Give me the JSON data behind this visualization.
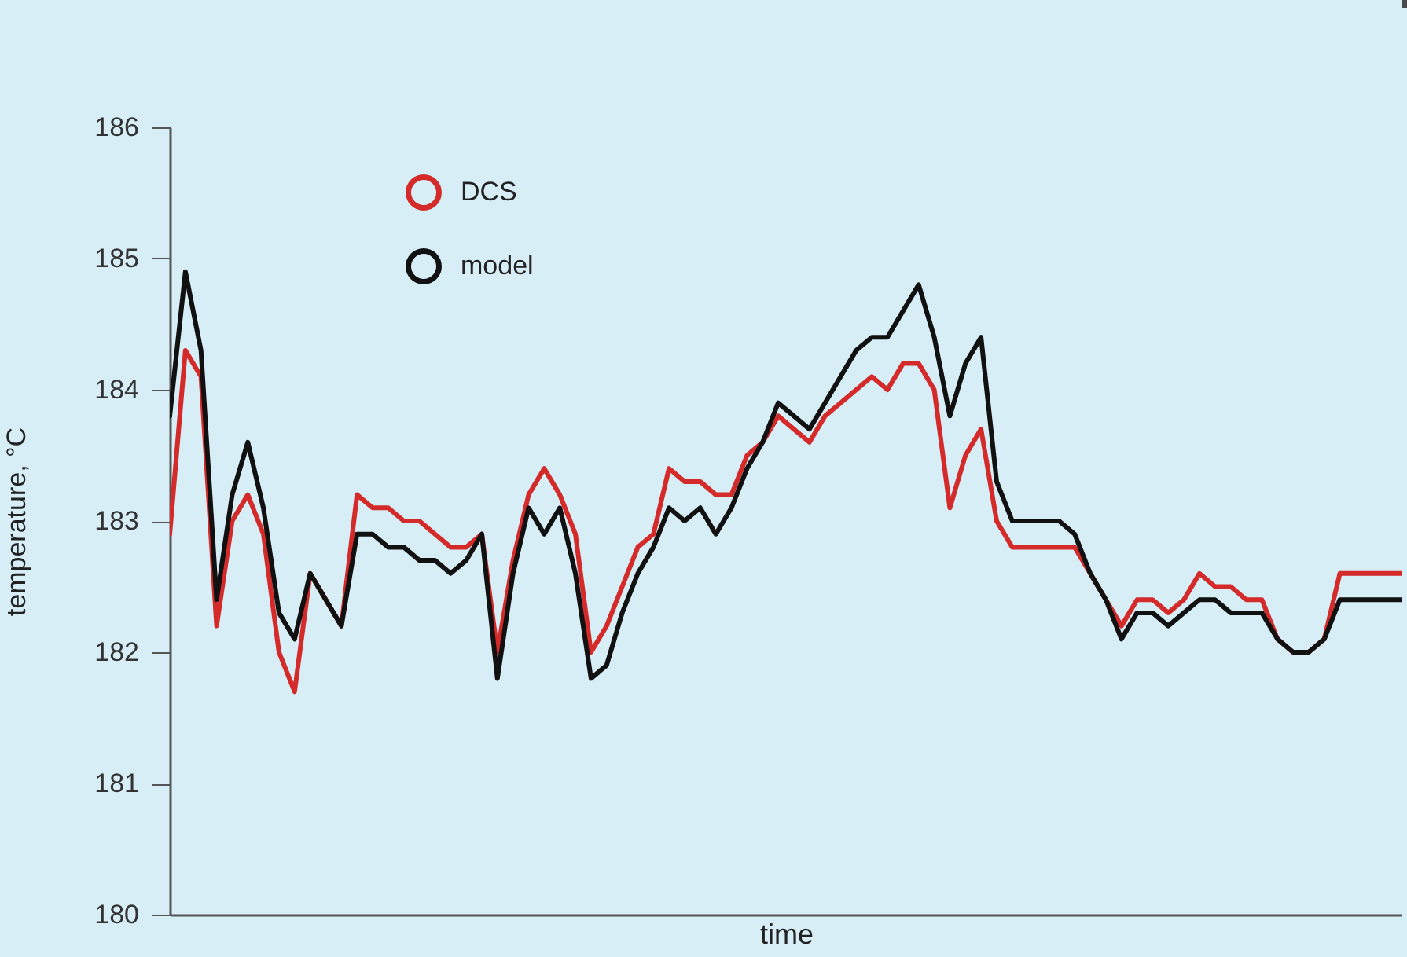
{
  "chart_data": {
    "type": "line",
    "xlabel": "time",
    "ylabel": "temperature, °C",
    "categories": [
      null,
      null,
      null,
      null,
      null,
      null,
      null,
      null,
      null,
      null,
      null,
      null,
      null,
      null,
      null,
      null,
      null,
      null,
      null,
      null,
      null,
      null,
      null,
      null,
      null,
      null,
      null,
      null,
      null,
      null,
      null,
      null,
      null,
      null,
      null,
      null,
      null,
      null,
      null,
      null,
      null,
      null,
      null,
      null,
      null,
      null,
      null,
      null,
      null,
      null,
      null,
      null,
      null,
      null,
      null,
      null,
      null,
      null,
      null,
      null,
      null,
      null,
      null,
      null,
      null,
      null,
      null,
      null,
      null,
      null,
      null,
      null,
      null,
      null,
      null,
      null,
      null,
      null,
      null,
      null
    ],
    "series": [
      {
        "name": "DCS",
        "color": "#d42a2a",
        "values": [
          182.9,
          184.3,
          184.1,
          182.2,
          183.0,
          183.2,
          182.9,
          182.0,
          181.7,
          182.6,
          182.4,
          182.2,
          183.2,
          183.1,
          183.1,
          183.0,
          183.0,
          182.9,
          182.8,
          182.8,
          182.9,
          182.0,
          182.7,
          183.2,
          183.4,
          183.2,
          182.9,
          182.0,
          182.2,
          182.5,
          182.8,
          182.9,
          183.4,
          183.3,
          183.3,
          183.2,
          183.2,
          183.5,
          183.6,
          183.8,
          183.7,
          183.6,
          183.8,
          183.9,
          184.0,
          184.1,
          184.0,
          184.2,
          184.2,
          184.0,
          183.1,
          183.5,
          183.7,
          183.0,
          182.8,
          182.8,
          182.8,
          182.8,
          182.8,
          182.6,
          182.4,
          182.2,
          182.4,
          182.4,
          182.3,
          182.4,
          182.6,
          182.5,
          182.5,
          182.4,
          182.4,
          182.1,
          182.0,
          182.0,
          182.1,
          182.6,
          182.6,
          182.6,
          182.6,
          182.6
        ]
      },
      {
        "name": "model",
        "color": "#111111",
        "values": [
          183.8,
          184.9,
          184.3,
          182.4,
          183.2,
          183.6,
          183.1,
          182.3,
          182.1,
          182.6,
          182.4,
          182.2,
          182.9,
          182.9,
          182.8,
          182.8,
          182.7,
          182.7,
          182.6,
          182.7,
          182.9,
          181.8,
          182.6,
          183.1,
          182.9,
          183.1,
          182.6,
          181.8,
          181.9,
          182.3,
          182.6,
          182.8,
          183.1,
          183.0,
          183.1,
          182.9,
          183.1,
          183.4,
          183.6,
          183.9,
          183.8,
          183.7,
          183.9,
          184.1,
          184.3,
          184.4,
          184.4,
          184.6,
          184.8,
          184.4,
          183.8,
          184.2,
          184.4,
          183.3,
          183.0,
          183.0,
          183.0,
          183.0,
          182.9,
          182.6,
          182.4,
          182.1,
          182.3,
          182.3,
          182.2,
          182.3,
          182.4,
          182.4,
          182.3,
          182.3,
          182.3,
          182.1,
          182.0,
          182.0,
          182.1,
          182.4,
          182.4,
          182.4,
          182.4,
          182.4
        ]
      }
    ],
    "ylim": [
      180,
      186
    ],
    "yticks": [
      180,
      181,
      182,
      183,
      184,
      185,
      186
    ],
    "grid": false,
    "legend": "top left",
    "line_style": "solid"
  }
}
